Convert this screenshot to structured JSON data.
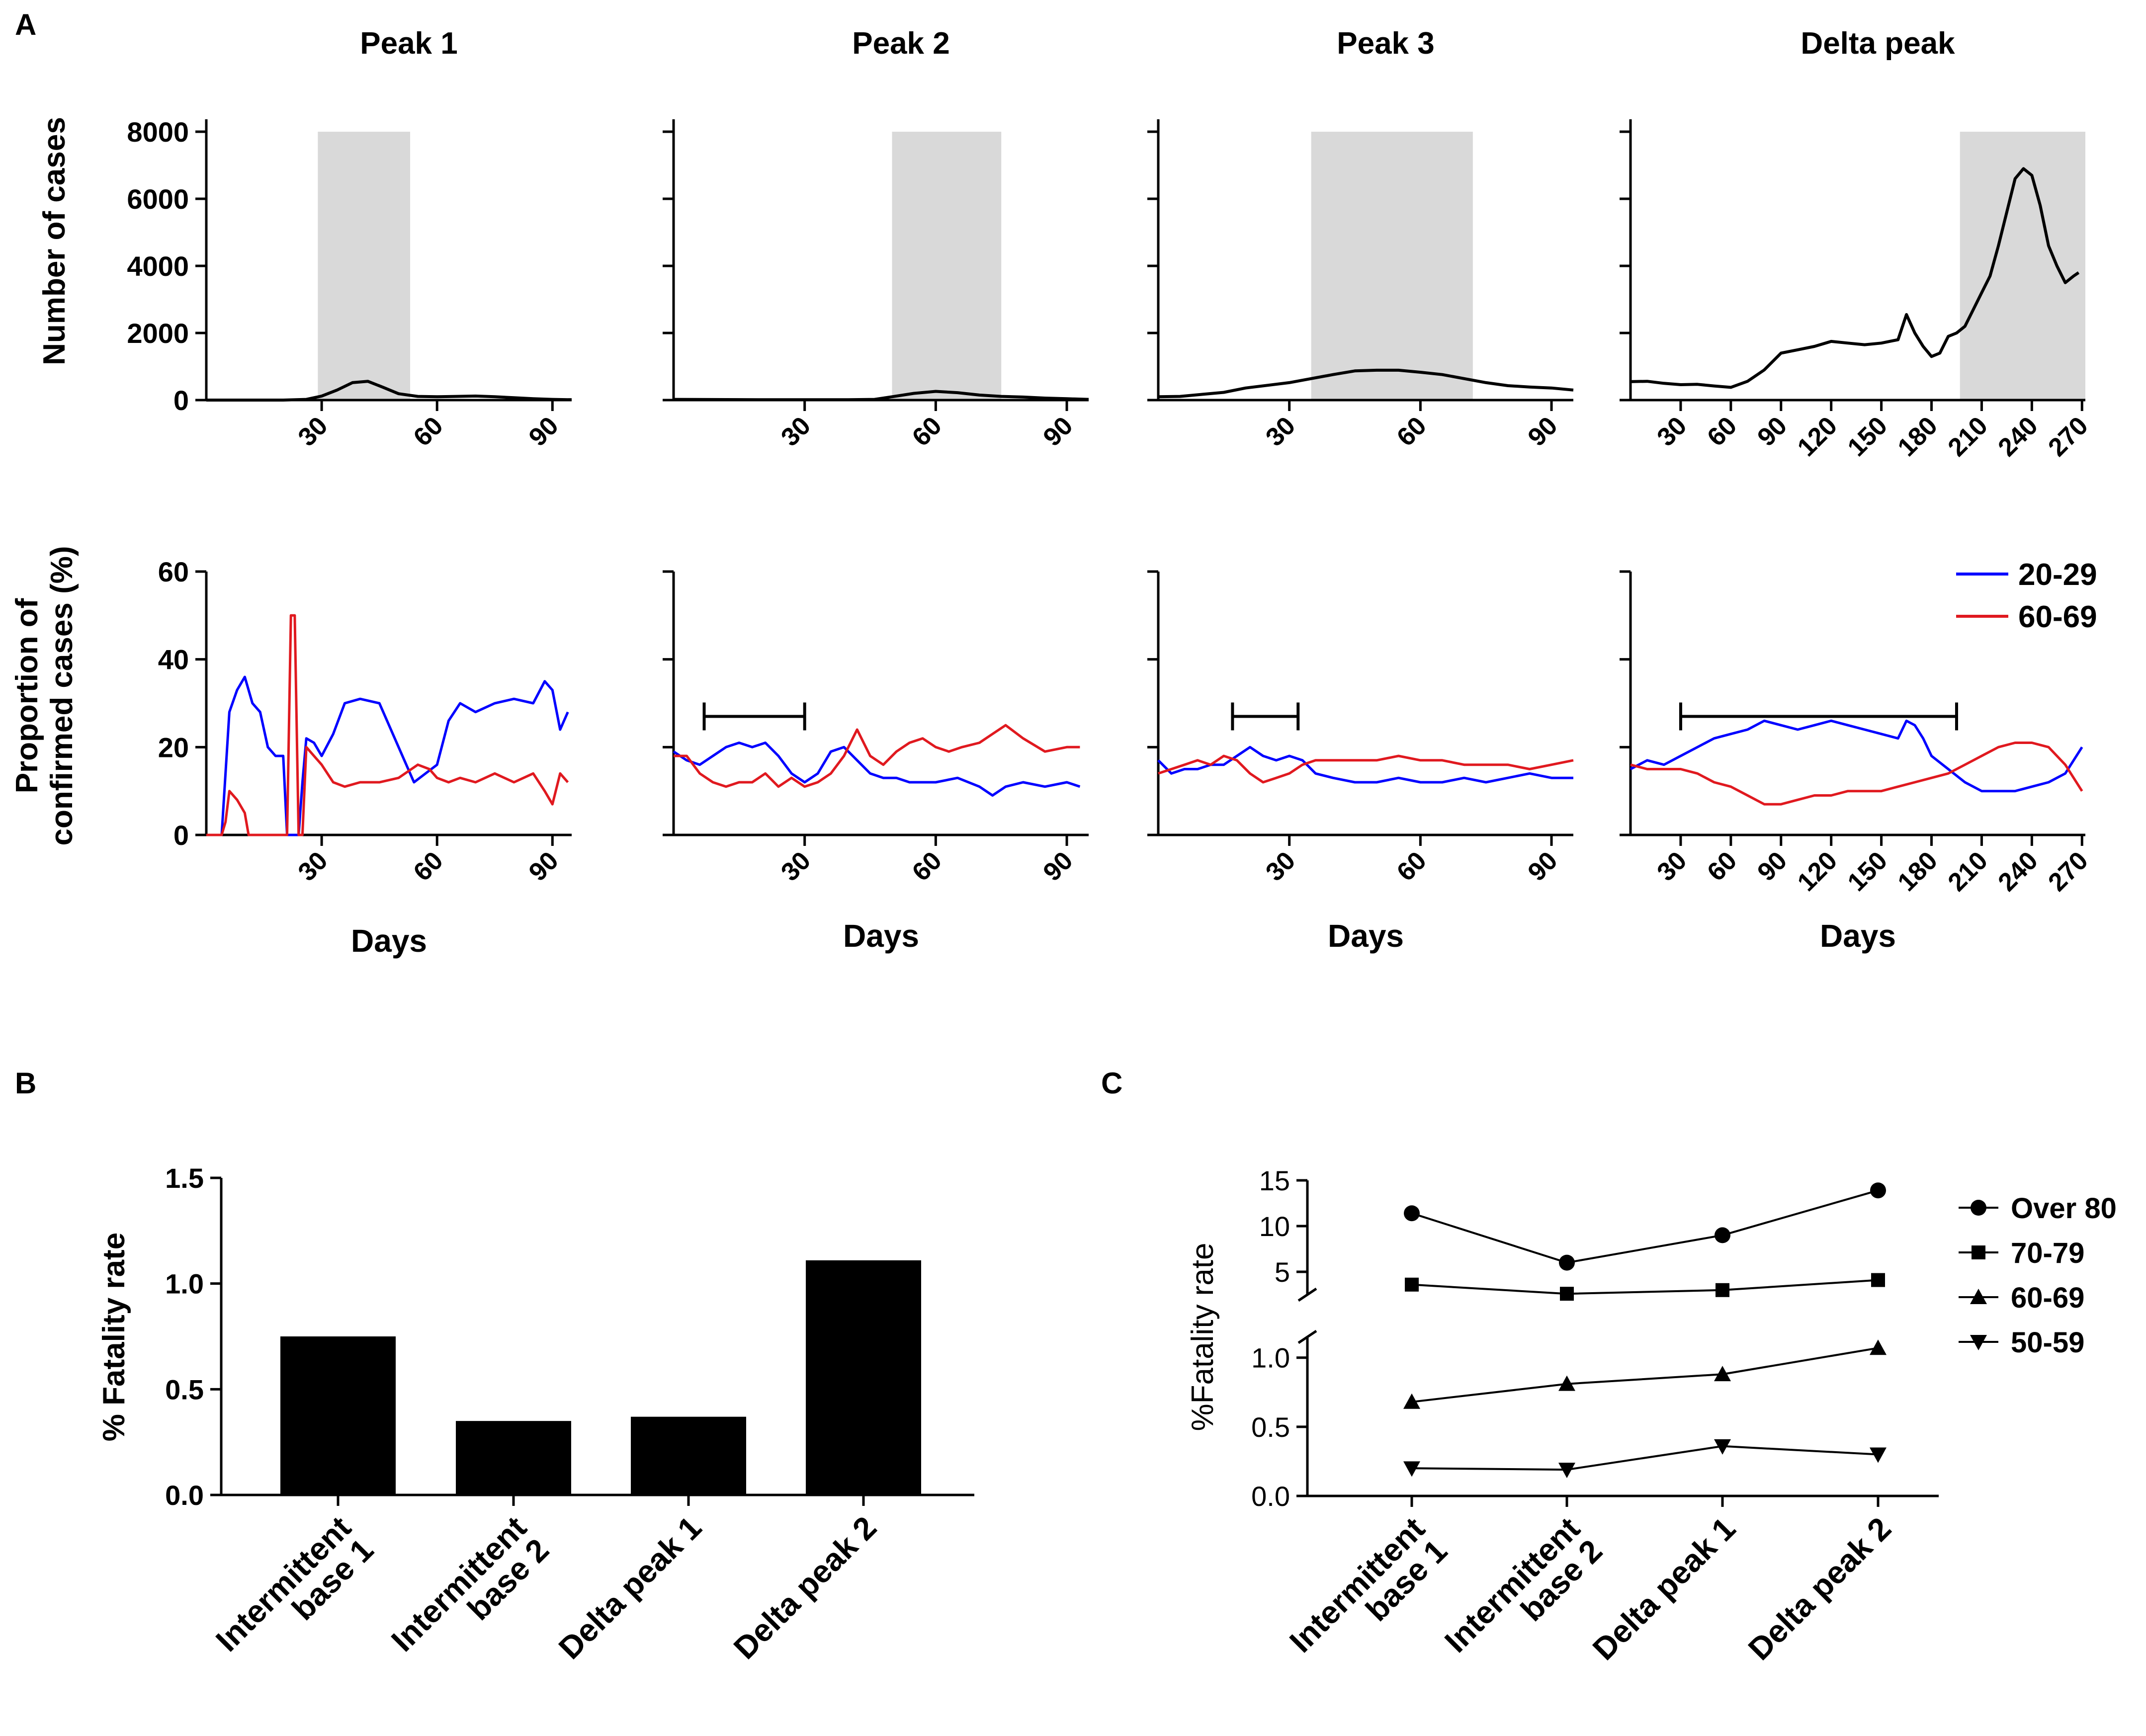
{
  "panel_labels": {
    "a": "A",
    "b": "B",
    "c": "C"
  },
  "colors": {
    "black": "#000000",
    "shade": "#d9d9d9",
    "age_20_29": "#0000ff",
    "age_60_69": "#e0191f"
  },
  "chart_data": [
    {
      "panel": "A",
      "type": "line",
      "rows": [
        {
          "ylabel": "Number of cases",
          "ylim": [
            0,
            8000
          ],
          "yticks": [
            0,
            2000,
            4000,
            6000,
            8000
          ]
        },
        {
          "ylabel": "Proportion of confirmed cases (%)",
          "ylim": [
            0,
            60
          ],
          "yticks": [
            0,
            20,
            40,
            60
          ]
        }
      ],
      "xlabel": "Days",
      "legend": {
        "position": "right",
        "entries": [
          {
            "name": "20-29",
            "color": "#0000ff"
          },
          {
            "name": "60-69",
            "color": "#e0191f"
          }
        ]
      },
      "subplots": [
        {
          "title": "Peak 1",
          "xlim": [
            0,
            95
          ],
          "xticks": [
            30,
            60,
            90
          ],
          "shaded_range": [
            29,
            53
          ],
          "cases": {
            "x": [
              0,
              20,
              26,
              30,
              34,
              38,
              42,
              46,
              50,
              55,
              60,
              65,
              70,
              75,
              80,
              85,
              90,
              95
            ],
            "y": [
              0,
              0,
              20,
              120,
              300,
              520,
              560,
              380,
              190,
              110,
              100,
              110,
              120,
              100,
              70,
              40,
              20,
              10
            ]
          },
          "bracket": null,
          "series": [
            {
              "name": "20-29",
              "x": [
                0,
                4,
                6,
                8,
                10,
                12,
                14,
                16,
                18,
                20,
                21,
                22,
                23,
                24,
                25,
                26,
                28,
                30,
                33,
                36,
                40,
                45,
                50,
                54,
                57,
                60,
                63,
                66,
                70,
                75,
                80,
                85,
                88,
                90,
                92,
                94
              ],
              "y": [
                0,
                0,
                28,
                33,
                36,
                30,
                28,
                20,
                18,
                18,
                0,
                0,
                0,
                0,
                12,
                22,
                21,
                18,
                23,
                30,
                31,
                30,
                20,
                12,
                14,
                16,
                26,
                30,
                28,
                30,
                31,
                30,
                35,
                33,
                24,
                28
              ]
            },
            {
              "name": "60-69",
              "x": [
                0,
                4,
                5,
                6,
                8,
                10,
                11,
                12,
                20,
                21,
                22,
                23,
                24,
                25,
                26,
                28,
                30,
                33,
                36,
                40,
                45,
                50,
                55,
                58,
                60,
                63,
                66,
                70,
                75,
                80,
                85,
                88,
                90,
                92,
                94
              ],
              "y": [
                0,
                0,
                3,
                10,
                8,
                5,
                0,
                0,
                0,
                0,
                50,
                50,
                0,
                0,
                20,
                18,
                16,
                12,
                11,
                12,
                12,
                13,
                16,
                15,
                13,
                12,
                13,
                12,
                14,
                12,
                14,
                10,
                7,
                14,
                12
              ]
            }
          ]
        },
        {
          "title": "Peak 2",
          "xlim": [
            0,
            95
          ],
          "xticks": [
            30,
            60,
            90
          ],
          "shaded_range": [
            50,
            75
          ],
          "cases": {
            "x": [
              0,
              20,
              40,
              46,
              50,
              55,
              60,
              65,
              70,
              75,
              80,
              85,
              90,
              95
            ],
            "y": [
              20,
              10,
              10,
              20,
              100,
              200,
              260,
              220,
              150,
              110,
              90,
              60,
              40,
              20
            ]
          },
          "bracket": [
            7,
            30
          ],
          "series": [
            {
              "name": "20-29",
              "x": [
                0,
                3,
                6,
                9,
                12,
                15,
                18,
                21,
                24,
                27,
                30,
                33,
                36,
                39,
                42,
                45,
                48,
                51,
                54,
                57,
                60,
                65,
                70,
                73,
                76,
                80,
                85,
                90,
                93
              ],
              "y": [
                19,
                17,
                16,
                18,
                20,
                21,
                20,
                21,
                18,
                14,
                12,
                14,
                19,
                20,
                17,
                14,
                13,
                13,
                12,
                12,
                12,
                13,
                11,
                9,
                11,
                12,
                11,
                12,
                11
              ]
            },
            {
              "name": "60-69",
              "x": [
                0,
                3,
                6,
                9,
                12,
                15,
                18,
                21,
                24,
                27,
                30,
                33,
                36,
                39,
                42,
                45,
                48,
                51,
                54,
                57,
                60,
                63,
                66,
                70,
                73,
                76,
                80,
                85,
                90,
                93
              ],
              "y": [
                18,
                18,
                14,
                12,
                11,
                12,
                12,
                14,
                11,
                13,
                11,
                12,
                14,
                18,
                24,
                18,
                16,
                19,
                21,
                22,
                20,
                19,
                20,
                21,
                23,
                25,
                22,
                19,
                20,
                20
              ]
            }
          ]
        },
        {
          "title": "Peak 3",
          "xlim": [
            0,
            95
          ],
          "xticks": [
            30,
            60,
            90
          ],
          "shaded_range": [
            35,
            72
          ],
          "cases": {
            "x": [
              0,
              5,
              10,
              15,
              20,
              25,
              30,
              35,
              40,
              45,
              50,
              55,
              60,
              65,
              70,
              75,
              80,
              85,
              90,
              95
            ],
            "y": [
              100,
              110,
              170,
              230,
              360,
              440,
              520,
              640,
              760,
              870,
              890,
              890,
              830,
              760,
              640,
              520,
              430,
              390,
              360,
              300
            ]
          },
          "bracket": [
            17,
            32
          ],
          "series": [
            {
              "name": "20-29",
              "x": [
                0,
                3,
                6,
                9,
                12,
                15,
                18,
                21,
                24,
                27,
                30,
                33,
                36,
                40,
                45,
                50,
                55,
                60,
                65,
                70,
                75,
                80,
                85,
                90,
                95
              ],
              "y": [
                17,
                14,
                15,
                15,
                16,
                16,
                18,
                20,
                18,
                17,
                18,
                17,
                14,
                13,
                12,
                12,
                13,
                12,
                12,
                13,
                12,
                13,
                14,
                13,
                13
              ]
            },
            {
              "name": "60-69",
              "x": [
                0,
                3,
                6,
                9,
                12,
                15,
                18,
                21,
                24,
                27,
                30,
                33,
                36,
                40,
                45,
                50,
                55,
                60,
                65,
                70,
                75,
                80,
                85,
                90,
                95
              ],
              "y": [
                14,
                15,
                16,
                17,
                16,
                18,
                17,
                14,
                12,
                13,
                14,
                16,
                17,
                17,
                17,
                17,
                18,
                17,
                17,
                16,
                16,
                16,
                15,
                16,
                17
              ]
            }
          ]
        },
        {
          "title": "Delta peak",
          "xlim": [
            0,
            272
          ],
          "xticks": [
            30,
            60,
            90,
            120,
            150,
            180,
            210,
            240,
            270
          ],
          "shaded_range": [
            197,
            272
          ],
          "cases": {
            "x": [
              0,
              10,
              20,
              30,
              40,
              50,
              60,
              70,
              80,
              90,
              100,
              110,
              120,
              130,
              140,
              150,
              160,
              165,
              170,
              175,
              180,
              185,
              190,
              195,
              200,
              205,
              210,
              215,
              220,
              225,
              230,
              235,
              240,
              245,
              250,
              255,
              260,
              265,
              268
            ],
            "y": [
              550,
              560,
              500,
              460,
              470,
              420,
              380,
              560,
              900,
              1400,
              1500,
              1600,
              1750,
              1700,
              1650,
              1700,
              1800,
              2550,
              2000,
              1600,
              1300,
              1400,
              1900,
              2000,
              2200,
              2700,
              3200,
              3700,
              4600,
              5600,
              6600,
              6900,
              6700,
              5800,
              4600,
              4000,
              3500,
              3700,
              3800
            ]
          },
          "bracket": [
            30,
            195
          ],
          "series": [
            {
              "name": "20-29",
              "x": [
                0,
                10,
                20,
                30,
                40,
                50,
                60,
                70,
                80,
                90,
                100,
                110,
                120,
                130,
                140,
                150,
                160,
                165,
                170,
                175,
                180,
                190,
                200,
                210,
                220,
                230,
                240,
                250,
                260,
                270
              ],
              "y": [
                15,
                17,
                16,
                18,
                20,
                22,
                23,
                24,
                26,
                25,
                24,
                25,
                26,
                25,
                24,
                23,
                22,
                26,
                25,
                22,
                18,
                15,
                12,
                10,
                10,
                10,
                11,
                12,
                14,
                20
              ]
            },
            {
              "name": "60-69",
              "x": [
                0,
                10,
                20,
                30,
                40,
                50,
                60,
                70,
                80,
                90,
                100,
                110,
                120,
                130,
                140,
                150,
                160,
                170,
                180,
                190,
                200,
                210,
                220,
                230,
                240,
                250,
                260,
                270
              ],
              "y": [
                16,
                15,
                15,
                15,
                14,
                12,
                11,
                9,
                7,
                7,
                8,
                9,
                9,
                10,
                10,
                10,
                11,
                12,
                13,
                14,
                16,
                18,
                20,
                21,
                21,
                20,
                16,
                10
              ]
            }
          ]
        }
      ]
    },
    {
      "panel": "B",
      "type": "bar",
      "ylabel": "% Fatality rate",
      "ylim": [
        0,
        1.5
      ],
      "yticks": [
        "0.0",
        "0.5",
        "1.0",
        "1.5"
      ],
      "categories": [
        [
          "Intermittent",
          "base 1"
        ],
        [
          "Intermittent",
          "base 2"
        ],
        [
          "Delta peak 1"
        ],
        [
          "Delta peak 2"
        ]
      ],
      "values": [
        0.75,
        0.35,
        0.37,
        1.11
      ]
    },
    {
      "panel": "C",
      "type": "line",
      "ylabel": "%Fatality rate",
      "axis_break": true,
      "upper_ylim": [
        2.5,
        15
      ],
      "upper_yticks": [
        "5",
        "10",
        "15"
      ],
      "lower_ylim": [
        0,
        1.15
      ],
      "lower_yticks": [
        "0.0",
        "0.5",
        "1.0"
      ],
      "categories": [
        [
          "Intermittent",
          "base 1"
        ],
        [
          "Intermittent",
          "base 2"
        ],
        [
          "Delta peak 1"
        ],
        [
          "Delta peak 2"
        ]
      ],
      "legend": {
        "position": "right"
      },
      "series": [
        {
          "name": "Over 80",
          "marker": "circle",
          "values": [
            11.4,
            6.0,
            9.0,
            13.9
          ]
        },
        {
          "name": "70-79",
          "marker": "square",
          "values": [
            3.6,
            2.6,
            3.0,
            4.1
          ]
        },
        {
          "name": "60-69",
          "marker": "triangle-up",
          "values": [
            0.68,
            0.81,
            0.88,
            1.07
          ]
        },
        {
          "name": "50-59",
          "marker": "triangle-down",
          "values": [
            0.2,
            0.19,
            0.36,
            0.3
          ]
        }
      ]
    }
  ]
}
